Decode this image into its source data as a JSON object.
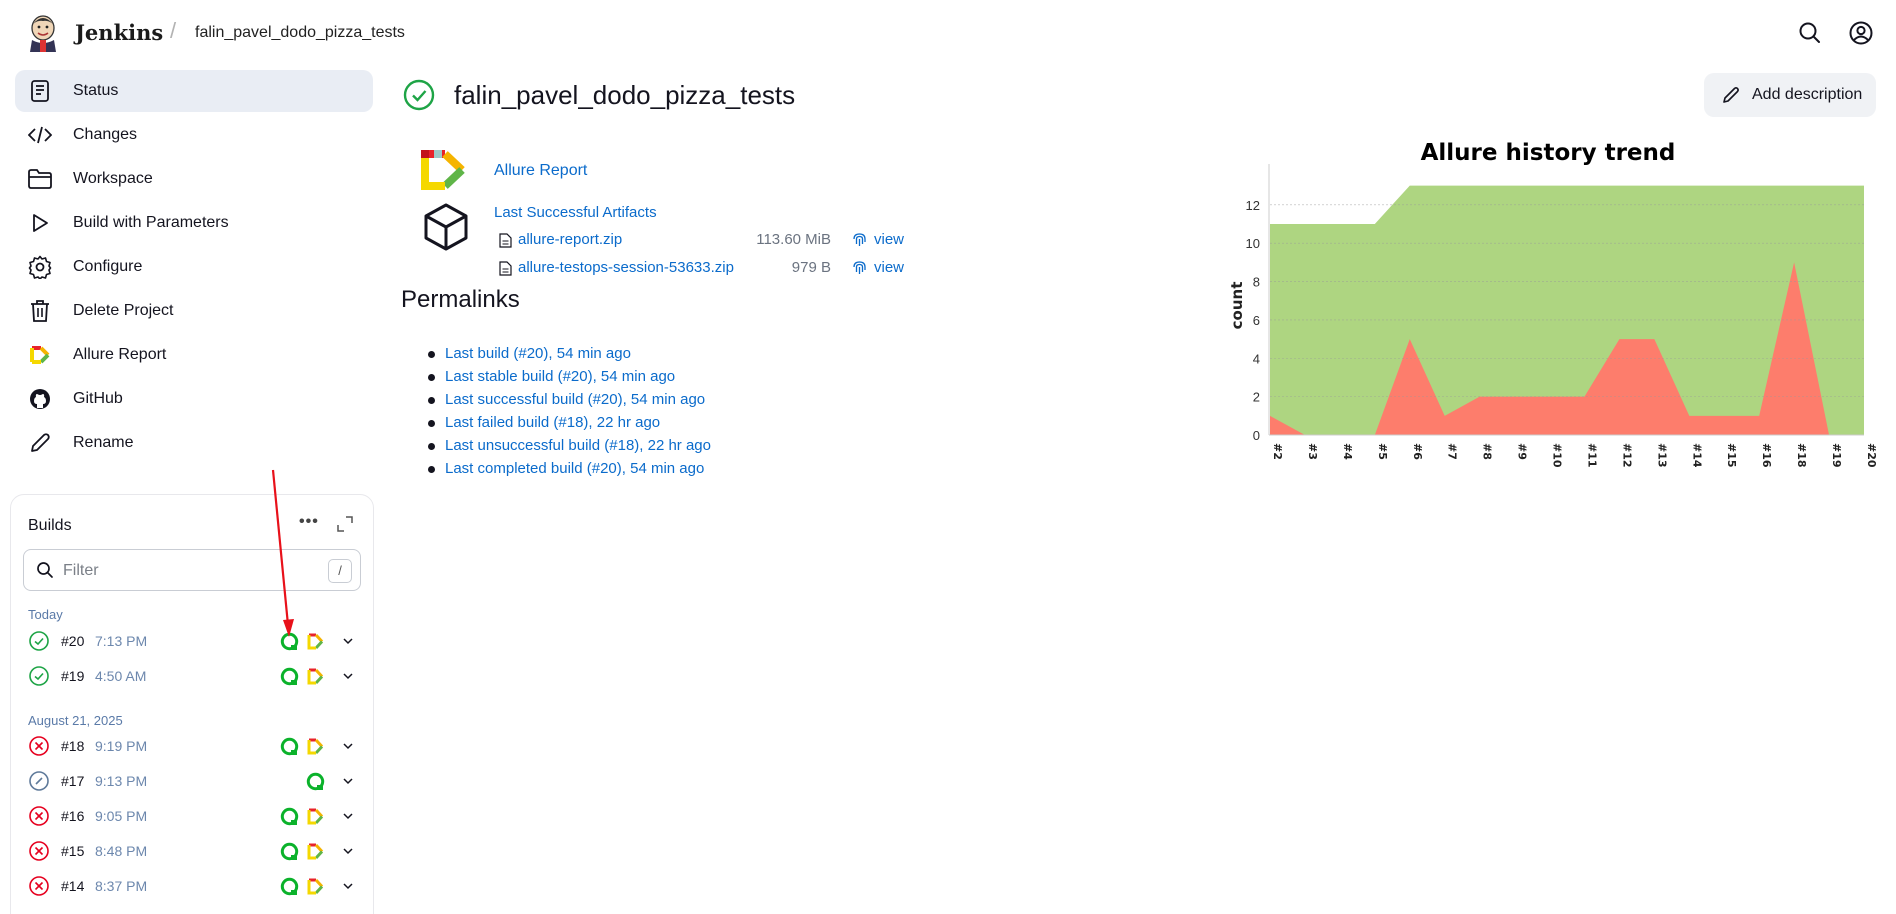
{
  "header": {
    "brand": "Jenkins",
    "breadcrumb": "falin_pavel_dodo_pizza_tests"
  },
  "sidebar": {
    "items": [
      {
        "label": "Status",
        "icon": "status-document-icon"
      },
      {
        "label": "Changes",
        "icon": "code-icon"
      },
      {
        "label": "Workspace",
        "icon": "folder-icon"
      },
      {
        "label": "Build with Parameters",
        "icon": "play-icon"
      },
      {
        "label": "Configure",
        "icon": "gear-icon"
      },
      {
        "label": "Delete Project",
        "icon": "trash-icon"
      },
      {
        "label": "Allure Report",
        "icon": "allure-icon"
      },
      {
        "label": "GitHub",
        "icon": "github-icon"
      },
      {
        "label": "Rename",
        "icon": "pencil-icon"
      }
    ]
  },
  "builds": {
    "title": "Builds",
    "filter_placeholder": "Filter",
    "filter_shortcut": "/",
    "groups": [
      {
        "label": "Today",
        "rows": [
          {
            "number": "#20",
            "time": "7:13 PM",
            "status": "success",
            "allure": true
          },
          {
            "number": "#19",
            "time": "4:50 AM",
            "status": "success",
            "allure": true
          }
        ]
      },
      {
        "label": "August 21, 2025",
        "rows": [
          {
            "number": "#18",
            "time": "9:19 PM",
            "status": "failed",
            "allure": true
          },
          {
            "number": "#17",
            "time": "9:13 PM",
            "status": "aborted",
            "allure": false
          },
          {
            "number": "#16",
            "time": "9:05 PM",
            "status": "failed",
            "allure": true
          },
          {
            "number": "#15",
            "time": "8:48 PM",
            "status": "failed",
            "allure": true
          },
          {
            "number": "#14",
            "time": "8:37 PM",
            "status": "failed",
            "allure": true
          }
        ]
      }
    ]
  },
  "main": {
    "title": "falin_pavel_dodo_pizza_tests",
    "add_description": "Add description",
    "allure_report": "Allure Report",
    "last_successful_artifacts": "Last Successful Artifacts",
    "artifacts": [
      {
        "name": "allure-report.zip",
        "size": "113.60 MiB",
        "view": "view"
      },
      {
        "name": "allure-testops-session-53633.zip",
        "size": "979 B",
        "view": "view"
      }
    ],
    "permalinks_heading": "Permalinks",
    "permalinks": [
      "Last build (#20), 54 min ago",
      "Last stable build (#20), 54 min ago",
      "Last successful build (#20), 54 min ago",
      "Last failed build (#18), 22 hr ago",
      "Last unsuccessful build (#18), 22 hr ago",
      "Last completed build (#20), 54 min ago"
    ]
  },
  "colors": {
    "passed": "#aed581",
    "failed": "#fd7d6c",
    "success": "#1ea446",
    "error": "#e6001f",
    "link": "#0b6bcb"
  },
  "chart_data": {
    "type": "area",
    "title": "Allure history trend",
    "ylabel": "count",
    "xlabel": "",
    "x": [
      "#2",
      "#3",
      "#4",
      "#5",
      "#6",
      "#7",
      "#8",
      "#9",
      "#10",
      "#11",
      "#12",
      "#13",
      "#14",
      "#15",
      "#16",
      "#18",
      "#19",
      "#20"
    ],
    "series": [
      {
        "values": [
          11,
          11,
          11,
          11,
          13,
          13,
          13,
          13,
          13,
          13,
          13,
          13,
          13,
          13,
          13,
          13,
          13,
          13
        ]
      },
      {
        "values": [
          1,
          0,
          0,
          0,
          5,
          1,
          2,
          2,
          2,
          2,
          5,
          5,
          1,
          1,
          1,
          9,
          0,
          0
        ]
      }
    ],
    "ylim": [
      0,
      13.5
    ],
    "yticks": [
      0,
      2,
      4,
      6,
      8,
      10,
      12
    ],
    "grid": true
  }
}
